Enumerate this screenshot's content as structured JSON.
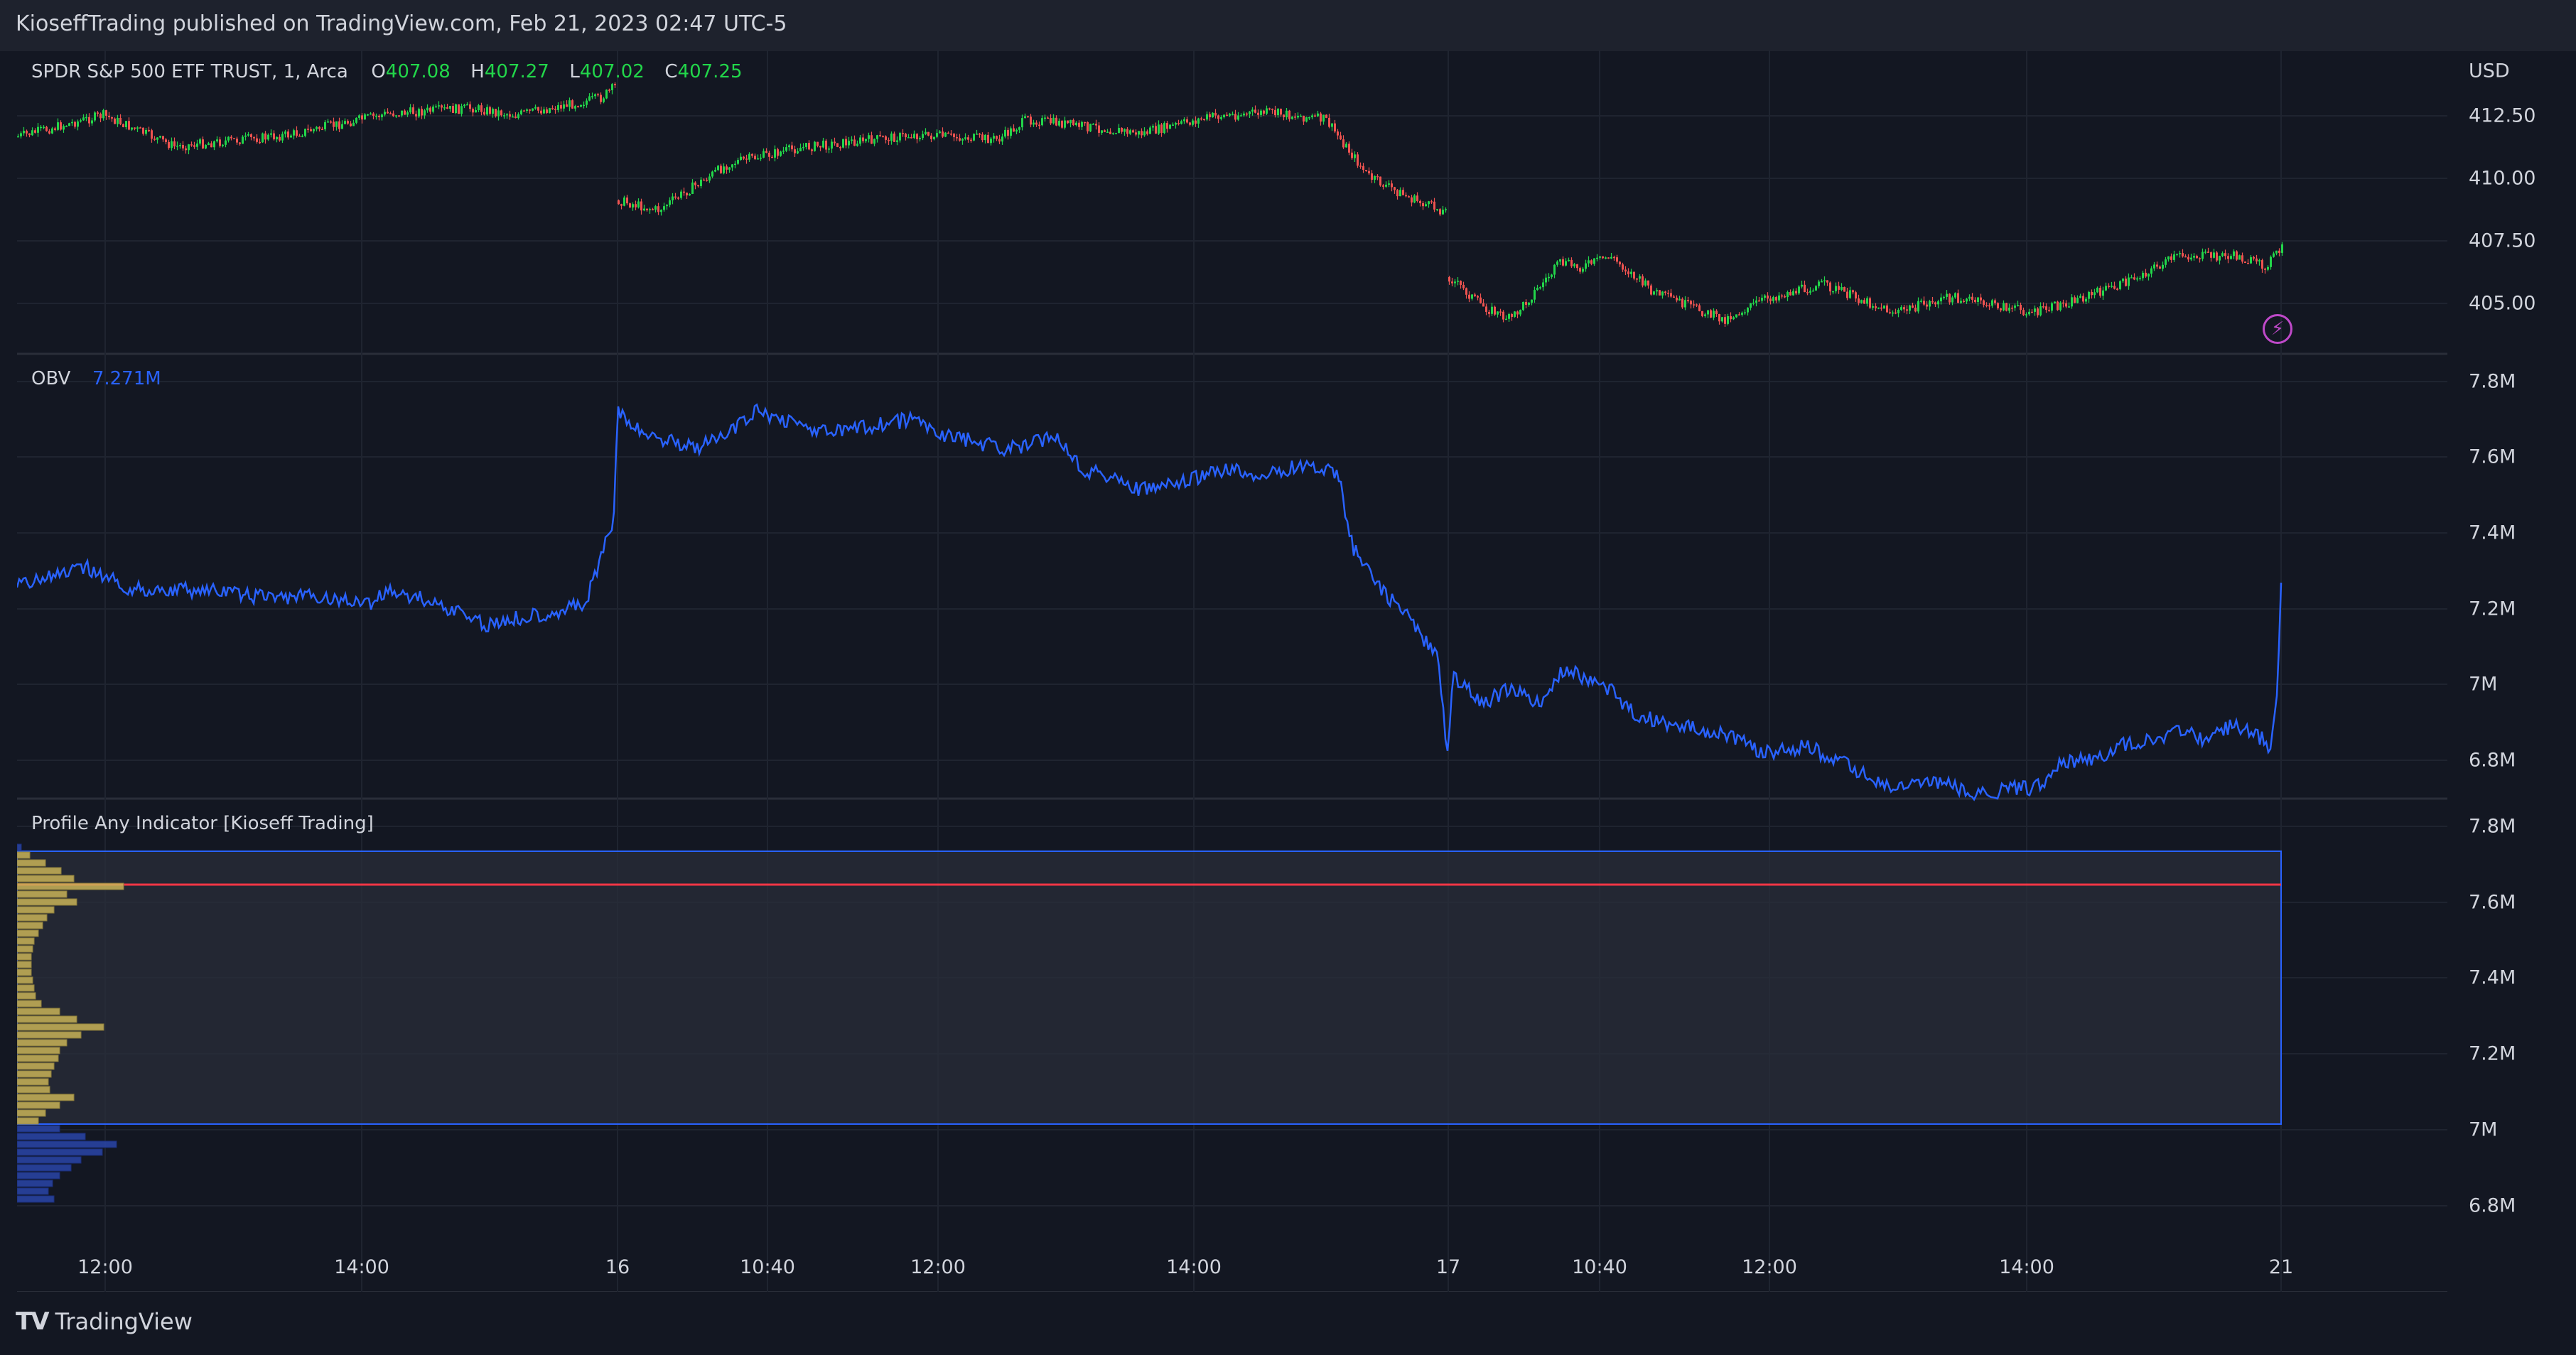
{
  "header": {
    "published_text": "KioseffTrading published on TradingView.com, Feb 21, 2023 02:47 UTC-5"
  },
  "price_pane": {
    "symbol": "SPDR S&P 500 ETF TRUST, 1, Arca",
    "o_label": "O",
    "o_value": "407.08",
    "h_label": "H",
    "h_value": "407.27",
    "l_label": "L",
    "l_value": "407.02",
    "c_label": "C",
    "c_value": "407.25",
    "currency": "USD",
    "ticks": [
      "412.50",
      "410.00",
      "407.50",
      "405.00"
    ]
  },
  "obv_pane": {
    "title": "OBV",
    "value": "7.271M",
    "ticks": [
      "7.8M",
      "7.6M",
      "7.4M",
      "7.2M",
      "7M",
      "6.8M"
    ]
  },
  "profile_pane": {
    "title": "Profile Any Indicator [Kioseff Trading]",
    "ticks": [
      "7.8M",
      "7.6M",
      "7.4M",
      "7.2M",
      "7M",
      "6.8M"
    ]
  },
  "time_axis": {
    "labels": [
      "12:00",
      "14:00",
      "16",
      "10:40",
      "12:00",
      "14:00",
      "17",
      "10:40",
      "12:00",
      "14:00",
      "21"
    ]
  },
  "footer": {
    "logo_mark": "TV",
    "brand": "TradingView"
  },
  "colors": {
    "background": "#131722",
    "up": "#26a69a",
    "down": "#ef5350",
    "obv_line": "#2962ff",
    "poc_line": "#f23645",
    "profile_yellow": "#c9b458",
    "profile_blue": "#2a45a8",
    "alert": "#bf49c9"
  },
  "icons": {
    "alert": "lightning-alert-icon"
  }
}
